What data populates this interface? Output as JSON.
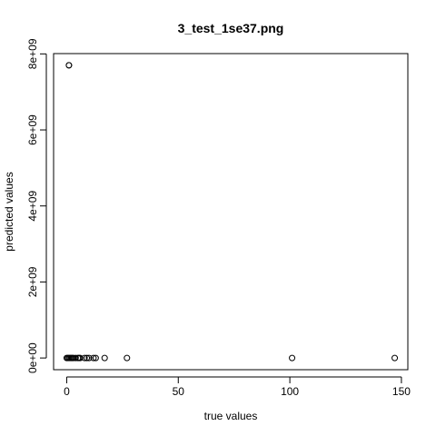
{
  "chart_data": {
    "type": "scatter",
    "title": "3_test_1se37.png",
    "xlabel": "true values",
    "ylabel": "predicted values",
    "xlim": [
      -5.88,
      152.88
    ],
    "ylim": [
      -308000000,
      8008000000
    ],
    "x_ticks": [
      0,
      50,
      100,
      150
    ],
    "x_tick_labels": [
      "0",
      "50",
      "100",
      "150"
    ],
    "y_ticks": [
      0,
      2000000000,
      4000000000,
      6000000000,
      8000000000
    ],
    "y_tick_labels": [
      "0e+00",
      "2e+09",
      "4e+09",
      "6e+09",
      "8e+09"
    ],
    "grid": false,
    "legend": "none",
    "points": [
      {
        "x": 1,
        "y": 7700000000
      },
      {
        "x": 1,
        "y": 7700000000
      },
      {
        "x": 0,
        "y": 0
      },
      {
        "x": 0.5,
        "y": 0
      },
      {
        "x": 1,
        "y": 0
      },
      {
        "x": 1.5,
        "y": 0
      },
      {
        "x": 2,
        "y": 0
      },
      {
        "x": 2.5,
        "y": 0
      },
      {
        "x": 3,
        "y": 0
      },
      {
        "x": 4,
        "y": 0
      },
      {
        "x": 5,
        "y": 0
      },
      {
        "x": 5.5,
        "y": 0
      },
      {
        "x": 6,
        "y": 0
      },
      {
        "x": 8,
        "y": 0
      },
      {
        "x": 9,
        "y": 0
      },
      {
        "x": 10,
        "y": 0
      },
      {
        "x": 12,
        "y": 0
      },
      {
        "x": 13,
        "y": 0
      },
      {
        "x": 17,
        "y": 0
      },
      {
        "x": 27,
        "y": 0
      },
      {
        "x": 101,
        "y": 0
      },
      {
        "x": 147,
        "y": 0
      }
    ]
  }
}
